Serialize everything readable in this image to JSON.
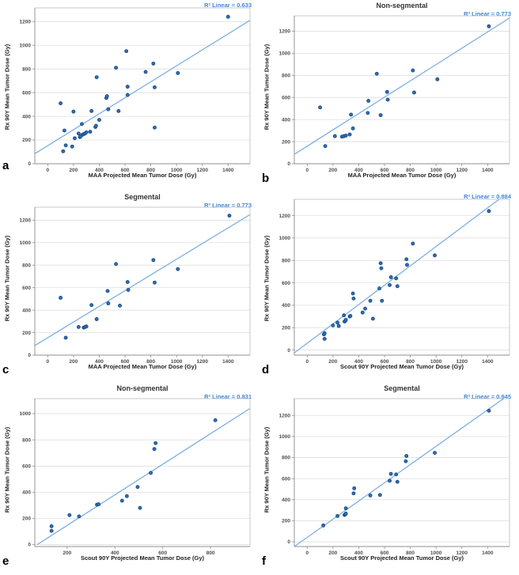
{
  "figure": {
    "background": "#ffffff",
    "layout": "2 columns x 3 rows of scatter plots"
  },
  "colors": {
    "point_fill": "#2f6fb7",
    "point_stroke": "#1b4c85",
    "trend_line": "#7eafe3",
    "grid": "#dadada",
    "frame": "#bdbdbd",
    "axis": "#8f8f8f",
    "tick_label": "#4d4d4d",
    "axis_label": "#1f1f1f",
    "title": "#333333",
    "r2_text": "#3f87d8",
    "panel_letter": "#000000"
  },
  "chart_data": [
    {
      "panel_letter": "a",
      "type": "scatter",
      "title": "",
      "r2_label": "R² Linear = 0.633",
      "xlabel": "MAA Projected Mean Tumor Dose (Gy)",
      "ylabel": "Rx 90Y Mean Tumor Dose (Gy)",
      "xlim": [
        -100,
        1570
      ],
      "ylim": [
        0,
        1315
      ],
      "xticks": [
        0,
        200,
        400,
        600,
        800,
        1000,
        1200,
        1400
      ],
      "yticks": [
        0,
        200,
        400,
        600,
        800,
        1000,
        1200
      ],
      "grid": "horizontal",
      "legend": "none",
      "trend": {
        "x1": -100,
        "y1": 85,
        "x2": 1570,
        "y2": 1210
      },
      "points": [
        [
          100,
          510
        ],
        [
          120,
          105
        ],
        [
          130,
          280
        ],
        [
          140,
          155
        ],
        [
          190,
          145
        ],
        [
          200,
          440
        ],
        [
          210,
          215
        ],
        [
          240,
          255
        ],
        [
          250,
          225
        ],
        [
          255,
          230
        ],
        [
          265,
          335
        ],
        [
          270,
          245
        ],
        [
          280,
          250
        ],
        [
          290,
          255
        ],
        [
          300,
          265
        ],
        [
          330,
          270
        ],
        [
          340,
          445
        ],
        [
          370,
          310
        ],
        [
          375,
          320
        ],
        [
          380,
          730
        ],
        [
          400,
          370
        ],
        [
          455,
          555
        ],
        [
          460,
          570
        ],
        [
          470,
          460
        ],
        [
          530,
          810
        ],
        [
          550,
          445
        ],
        [
          610,
          950
        ],
        [
          620,
          580
        ],
        [
          620,
          650
        ],
        [
          760,
          775
        ],
        [
          820,
          845
        ],
        [
          830,
          305
        ],
        [
          830,
          645
        ],
        [
          1010,
          765
        ],
        [
          1400,
          1240
        ]
      ]
    },
    {
      "panel_letter": "b",
      "type": "scatter",
      "title": "Non-segmental",
      "r2_label": "R² Linear = 0.773",
      "xlabel": "MAA Projected Mean Tumor Dose (Gy)",
      "ylabel": "Rx 90Y Mean Tumor Dose (Gy)",
      "xlim": [
        -100,
        1570
      ],
      "ylim": [
        0,
        1340
      ],
      "xticks": [
        0,
        200,
        400,
        600,
        800,
        1000,
        1200,
        1400
      ],
      "yticks": [
        0,
        200,
        400,
        600,
        800,
        1000,
        1200
      ],
      "grid": "horizontal",
      "legend": "none",
      "trend": {
        "x1": -100,
        "y1": 85,
        "x2": 1570,
        "y2": 1320
      },
      "points": [
        [
          100,
          510
        ],
        [
          140,
          160
        ],
        [
          215,
          250
        ],
        [
          270,
          245
        ],
        [
          285,
          250
        ],
        [
          300,
          255
        ],
        [
          330,
          265
        ],
        [
          340,
          445
        ],
        [
          355,
          320
        ],
        [
          470,
          460
        ],
        [
          475,
          570
        ],
        [
          540,
          815
        ],
        [
          570,
          440
        ],
        [
          620,
          650
        ],
        [
          625,
          580
        ],
        [
          820,
          845
        ],
        [
          830,
          645
        ],
        [
          1010,
          765
        ],
        [
          1410,
          1245
        ]
      ]
    },
    {
      "panel_letter": "c",
      "type": "scatter",
      "title": "Segmental",
      "r2_label": "R² Linear = 0.773",
      "xlabel": "MAA Projected Mean Tumor Dose (Gy)",
      "ylabel": "Rx 90Y Mean Tumor Dose (Gy)",
      "xlim": [
        -100,
        1570
      ],
      "ylim": [
        0,
        1315
      ],
      "xticks": [
        0,
        200,
        400,
        600,
        800,
        1000,
        1200,
        1400
      ],
      "yticks": [
        0,
        200,
        400,
        600,
        800,
        1000,
        1200
      ],
      "grid": "horizontal",
      "legend": "none",
      "trend": {
        "x1": -100,
        "y1": 85,
        "x2": 1570,
        "y2": 1250
      },
      "points": [
        [
          100,
          510
        ],
        [
          140,
          155
        ],
        [
          240,
          250
        ],
        [
          280,
          245
        ],
        [
          290,
          250
        ],
        [
          300,
          255
        ],
        [
          340,
          445
        ],
        [
          380,
          320
        ],
        [
          465,
          570
        ],
        [
          470,
          460
        ],
        [
          530,
          810
        ],
        [
          560,
          440
        ],
        [
          620,
          650
        ],
        [
          625,
          580
        ],
        [
          820,
          845
        ],
        [
          830,
          645
        ],
        [
          1010,
          765
        ],
        [
          1410,
          1240
        ]
      ]
    },
    {
      "panel_letter": "d",
      "type": "scatter",
      "title": "",
      "r2_label": "R² Linear = 0.884",
      "xlabel": "Scout 90Y Projected Mean Tumor Dose (Gy)",
      "ylabel": "Rx 90Y Mean Tumor Dose (Gy)",
      "xlim": [
        -100,
        1570
      ],
      "ylim": [
        -45,
        1345
      ],
      "xticks": [
        0,
        200,
        400,
        600,
        800,
        1000,
        1200,
        1400
      ],
      "yticks": [
        0,
        200,
        400,
        600,
        800,
        1000,
        1200
      ],
      "grid": "horizontal",
      "legend": "none",
      "trend": {
        "x1": -100,
        "y1": -25,
        "x2": 1570,
        "y2": 1415
      },
      "points": [
        [
          130,
          140
        ],
        [
          135,
          150
        ],
        [
          135,
          100
        ],
        [
          200,
          220
        ],
        [
          235,
          245
        ],
        [
          245,
          215
        ],
        [
          285,
          310
        ],
        [
          290,
          255
        ],
        [
          295,
          260
        ],
        [
          300,
          270
        ],
        [
          330,
          300
        ],
        [
          335,
          305
        ],
        [
          355,
          505
        ],
        [
          360,
          460
        ],
        [
          430,
          335
        ],
        [
          450,
          370
        ],
        [
          490,
          440
        ],
        [
          510,
          280
        ],
        [
          560,
          550
        ],
        [
          570,
          775
        ],
        [
          575,
          730
        ],
        [
          580,
          440
        ],
        [
          640,
          580
        ],
        [
          650,
          650
        ],
        [
          690,
          640
        ],
        [
          700,
          570
        ],
        [
          770,
          810
        ],
        [
          775,
          760
        ],
        [
          820,
          950
        ],
        [
          990,
          845
        ],
        [
          1410,
          1240
        ]
      ]
    },
    {
      "panel_letter": "e",
      "type": "scatter",
      "title": "Non-segmental",
      "r2_label": "R² Linear = 0.831",
      "xlabel": "Scout 90Y Projected Mean Tumor Dose (Gy)",
      "ylabel": "Rx 90Y Mean Tumor Dose (Gy)",
      "xlim": [
        65,
        965
      ],
      "ylim": [
        -15,
        1115
      ],
      "xticks": [
        200,
        400,
        600,
        800
      ],
      "yticks": [
        0,
        200,
        400,
        600,
        800,
        1000
      ],
      "grid": "horizontal",
      "legend": "none",
      "trend": {
        "x1": 75,
        "y1": 0,
        "x2": 965,
        "y2": 1040
      },
      "points": [
        [
          135,
          105
        ],
        [
          135,
          140
        ],
        [
          210,
          225
        ],
        [
          250,
          215
        ],
        [
          325,
          305
        ],
        [
          332,
          308
        ],
        [
          430,
          335
        ],
        [
          450,
          370
        ],
        [
          495,
          440
        ],
        [
          505,
          280
        ],
        [
          550,
          548
        ],
        [
          565,
          730
        ],
        [
          570,
          775
        ],
        [
          820,
          950
        ]
      ]
    },
    {
      "panel_letter": "f",
      "type": "scatter",
      "title": "Segmental",
      "r2_label": "R² Linear = 0.945",
      "xlabel": "Scout 90Y Projected Mean Tumor Dose (Gy)",
      "ylabel": "Rx 90Y Mean Tumor Dose (Gy)",
      "xlim": [
        -100,
        1570
      ],
      "ylim": [
        -45,
        1360
      ],
      "xticks": [
        0,
        200,
        400,
        600,
        800,
        1000,
        1200,
        1400
      ],
      "yticks": [
        0,
        200,
        400,
        600,
        800,
        1000,
        1200
      ],
      "grid": "horizontal",
      "legend": "none",
      "trend": {
        "x1": -100,
        "y1": -45,
        "x2": 1570,
        "y2": 1400
      },
      "points": [
        [
          125,
          155
        ],
        [
          235,
          245
        ],
        [
          290,
          255
        ],
        [
          295,
          260
        ],
        [
          300,
          268
        ],
        [
          300,
          318
        ],
        [
          360,
          460
        ],
        [
          365,
          508
        ],
        [
          490,
          440
        ],
        [
          565,
          445
        ],
        [
          640,
          580
        ],
        [
          650,
          645
        ],
        [
          690,
          640
        ],
        [
          700,
          570
        ],
        [
          765,
          765
        ],
        [
          770,
          815
        ],
        [
          990,
          845
        ],
        [
          1410,
          1245
        ]
      ]
    }
  ]
}
